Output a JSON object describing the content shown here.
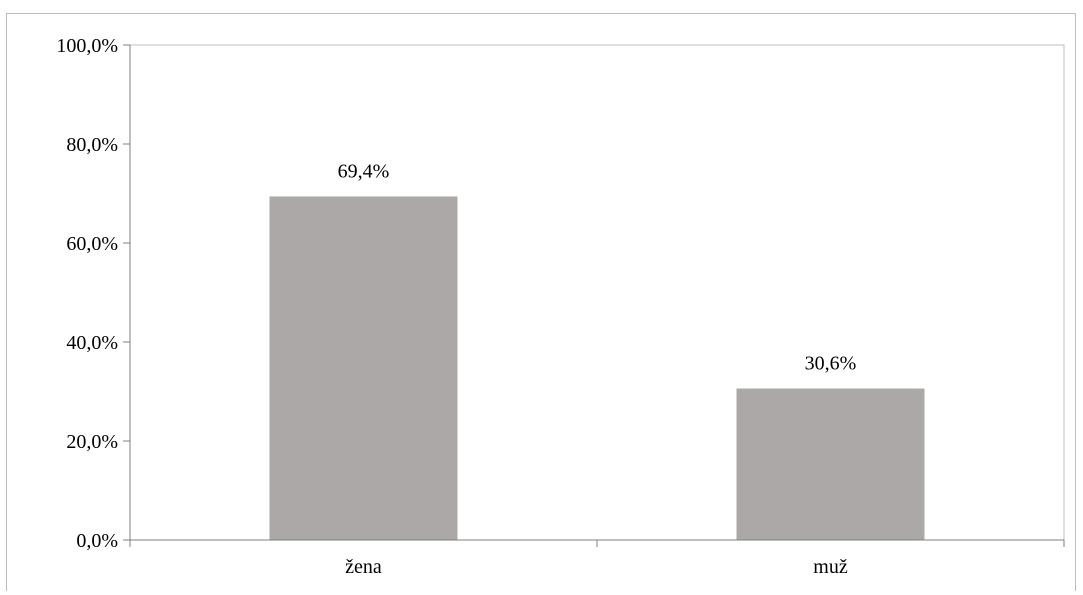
{
  "chart_data": {
    "type": "bar",
    "categories": [
      "žena",
      "muž"
    ],
    "values": [
      69.4,
      30.6
    ],
    "data_labels": [
      "69,4%",
      "30,6%"
    ],
    "y_tick_labels": [
      "0,0%",
      "20,0%",
      "40,0%",
      "60,0%",
      "80,0%",
      "100,0%"
    ],
    "y_ticks": [
      0,
      20,
      40,
      60,
      80,
      100
    ],
    "ylim": [
      0,
      100
    ],
    "title": "",
    "xlabel": "",
    "ylabel": "",
    "grid": false,
    "legend": "none",
    "bar_color": "#aca8a7",
    "axis_color": "#7f7f7f",
    "plot_border_color": "#bfbfbf"
  }
}
